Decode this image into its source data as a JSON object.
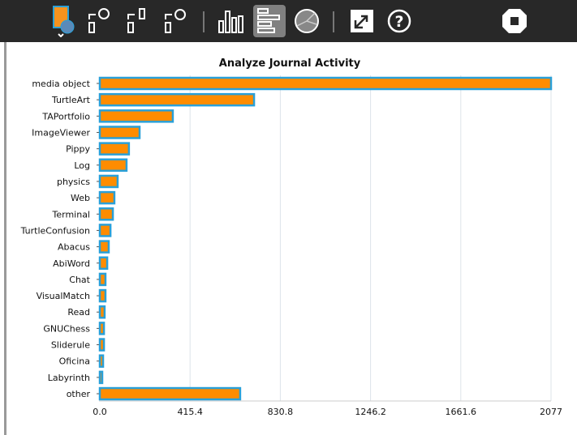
{
  "toolbar": {
    "items": [
      {
        "name": "journal-activity-icon"
      },
      {
        "name": "import-chart-icon"
      },
      {
        "name": "import-files-icon"
      },
      {
        "name": "import-turtle-icon"
      },
      {
        "name": "vertical-bar-chart-icon"
      },
      {
        "name": "horizontal-bar-chart-icon",
        "active": true
      },
      {
        "name": "pie-chart-icon"
      },
      {
        "name": "fullscreen-icon"
      },
      {
        "name": "help-icon"
      },
      {
        "name": "stop-icon"
      }
    ]
  },
  "colors": {
    "bar_fill": "#ff8c00",
    "bar_stroke": "#2aa0d8",
    "toolbar": "#282828",
    "active_button": "#808080"
  },
  "chart_data": {
    "type": "bar",
    "orientation": "horizontal",
    "title": "Analyze Journal Activity",
    "categories": [
      "media object",
      "TurtleArt",
      "TAPortfolio",
      "ImageViewer",
      "Pippy",
      "Log",
      "physics",
      "Web",
      "Terminal",
      "TurtleConfusion",
      "Abacus",
      "AbiWord",
      "Chat",
      "VisualMatch",
      "Read",
      "GNUChess",
      "Sliderule",
      "Oficina",
      "Labyrinth",
      "other"
    ],
    "values": [
      2077,
      710,
      336,
      183,
      134,
      123,
      82,
      67,
      60,
      49,
      41,
      34,
      26,
      26,
      22,
      19,
      19,
      15,
      11,
      646
    ],
    "xlim": [
      0,
      2077
    ],
    "xticks": [
      "0.0",
      "415.4",
      "830.8",
      "1246.2",
      "1661.6",
      "2077"
    ],
    "grid": true
  }
}
